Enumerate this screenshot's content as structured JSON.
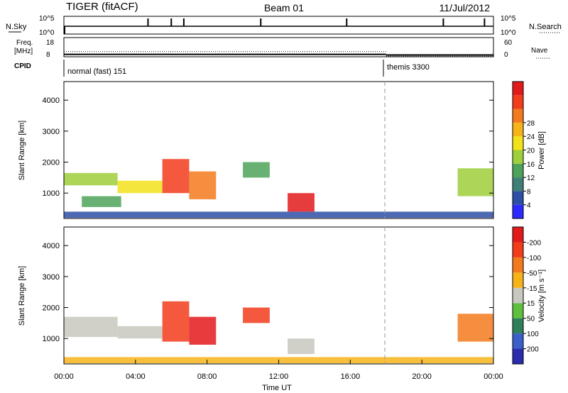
{
  "header": {
    "left": "TIGER (fitACF)",
    "center": "Beam 01",
    "right": "11/Jul/2012"
  },
  "chart_data": [
    {
      "type": "line",
      "title": "",
      "ylabel_left": "N.Sky",
      "ylabel_right": "N.Search",
      "yticks_left": [
        "10^5",
        "10^0"
      ],
      "yticks_right": [
        "10^5",
        "10^0"
      ],
      "spikes_hours": [
        4.7,
        6.0,
        6.7,
        11.0,
        15.8,
        21.2,
        23.5
      ],
      "baseline": "near 10^0"
    },
    {
      "type": "line",
      "ylabel_left": "Freq. [MHz]",
      "ylabel_right": "Nave",
      "yticks_left": [
        "18",
        "8"
      ],
      "yticks_right": [
        "60",
        "0"
      ],
      "freq_segments": [
        {
          "from": 0,
          "to": 18,
          "value": 10
        },
        {
          "from": 18,
          "to": 24,
          "value": 9.5
        }
      ],
      "nave_segments": [
        {
          "from": 0,
          "to": 18,
          "value": 16
        },
        {
          "from": 18,
          "to": 24,
          "value": 2
        }
      ]
    },
    {
      "type": "table",
      "label": "CPID",
      "segments": [
        {
          "name": "normal (fast) 151",
          "from": 0,
          "to": 18
        },
        {
          "name": "themis 3300",
          "from": 18,
          "to": 24
        }
      ]
    },
    {
      "type": "heatmap",
      "ylabel": "Slant Range [km]",
      "yticks": [
        1000,
        2000,
        3000,
        4000
      ],
      "ylim": [
        180,
        4600
      ],
      "xlim": [
        0,
        24
      ],
      "colorbar": {
        "label": "Power [dB]",
        "ticks": [
          "4",
          "8",
          "12",
          "16",
          "20",
          "24",
          "28"
        ],
        "colors": [
          "#2b2bff",
          "#2e4fa6",
          "#3f7f78",
          "#4ea35a",
          "#9fcf3c",
          "#f2e21a",
          "#f6b41a",
          "#f47a1e",
          "#f23c1c",
          "#e31a1c"
        ]
      },
      "echoes": [
        {
          "t0": 0.0,
          "t1": 3.0,
          "r0": 1250,
          "r1": 1650,
          "level": 4
        },
        {
          "t0": 3.0,
          "t1": 5.5,
          "r0": 1000,
          "r1": 1400,
          "level": 5
        },
        {
          "t0": 5.5,
          "t1": 7.0,
          "r0": 1000,
          "r1": 2100,
          "level": 8
        },
        {
          "t0": 7.0,
          "t1": 8.5,
          "r0": 800,
          "r1": 1700,
          "level": 7
        },
        {
          "t0": 1.0,
          "t1": 3.2,
          "r0": 550,
          "r1": 900,
          "level": 3
        },
        {
          "t0": 10.0,
          "t1": 11.5,
          "r0": 1500,
          "r1": 2000,
          "level": 3
        },
        {
          "t0": 12.5,
          "t1": 14.0,
          "r0": 400,
          "r1": 1000,
          "level": 9
        },
        {
          "t0": 22.0,
          "t1": 24.0,
          "r0": 900,
          "r1": 1800,
          "level": 4
        },
        {
          "t0": 0.0,
          "t1": 24.0,
          "r0": 200,
          "r1": 400,
          "level": 1
        }
      ]
    },
    {
      "type": "heatmap",
      "ylabel": "Slant Range [km]",
      "xlabel": "Time UT",
      "xticks": [
        "00:00",
        "04:00",
        "08:00",
        "12:00",
        "16:00",
        "20:00",
        "00:00"
      ],
      "yticks": [
        1000,
        2000,
        3000,
        4000
      ],
      "ylim": [
        180,
        4600
      ],
      "xlim": [
        0,
        24
      ],
      "colorbar": {
        "label": "Velocity [m s⁻¹]",
        "ticks": [
          "200",
          "100",
          "50",
          "15",
          "-15",
          "-50",
          "-100",
          "-200"
        ],
        "colors": [
          "#2b2bb0",
          "#3a5fc8",
          "#2f7f5a",
          "#5fbf3f",
          "#c8c8c0",
          "#f6b41a",
          "#f47a1e",
          "#f23c1c",
          "#e31a1c"
        ]
      },
      "echoes": [
        {
          "t0": 0.0,
          "t1": 3.0,
          "r0": 1050,
          "r1": 1700,
          "level": 4
        },
        {
          "t0": 3.0,
          "t1": 5.5,
          "r0": 1000,
          "r1": 1400,
          "level": 4
        },
        {
          "t0": 5.5,
          "t1": 7.0,
          "r0": 900,
          "r1": 2200,
          "level": 7
        },
        {
          "t0": 7.0,
          "t1": 8.5,
          "r0": 800,
          "r1": 1700,
          "level": 8
        },
        {
          "t0": 10.0,
          "t1": 11.5,
          "r0": 1500,
          "r1": 2000,
          "level": 7
        },
        {
          "t0": 12.5,
          "t1": 14.0,
          "r0": 500,
          "r1": 1000,
          "level": 4
        },
        {
          "t0": 22.0,
          "t1": 24.0,
          "r0": 900,
          "r1": 1800,
          "level": 6
        },
        {
          "t0": 0.0,
          "t1": 24.0,
          "r0": 200,
          "r1": 400,
          "level": 5
        }
      ]
    }
  ]
}
